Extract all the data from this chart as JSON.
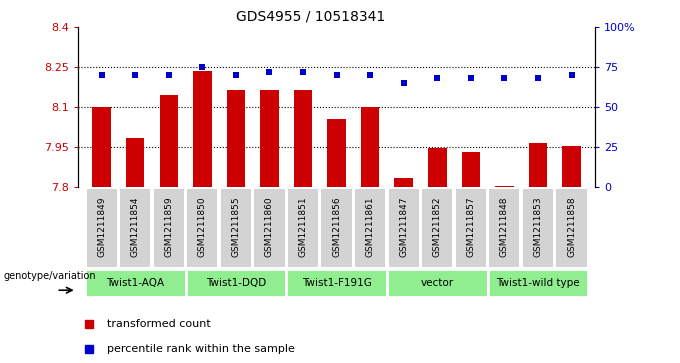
{
  "title": "GDS4955 / 10518341",
  "samples": [
    "GSM1211849",
    "GSM1211854",
    "GSM1211859",
    "GSM1211850",
    "GSM1211855",
    "GSM1211860",
    "GSM1211851",
    "GSM1211856",
    "GSM1211861",
    "GSM1211847",
    "GSM1211852",
    "GSM1211857",
    "GSM1211848",
    "GSM1211853",
    "GSM1211858"
  ],
  "bar_values": [
    8.1,
    7.985,
    8.145,
    8.235,
    8.165,
    8.165,
    8.165,
    8.055,
    8.1,
    7.835,
    7.945,
    7.93,
    7.805,
    7.965,
    7.955
  ],
  "percentile_values": [
    70,
    70,
    70,
    75,
    70,
    72,
    72,
    70,
    70,
    65,
    68,
    68,
    68,
    68,
    70
  ],
  "genotype_groups": [
    {
      "label": "Twist1-AQA",
      "start": 0,
      "end": 3
    },
    {
      "label": "Twist1-DQD",
      "start": 3,
      "end": 6
    },
    {
      "label": "Twist1-F191G",
      "start": 6,
      "end": 9
    },
    {
      "label": "vector",
      "start": 9,
      "end": 12
    },
    {
      "label": "Twist1-wild type",
      "start": 12,
      "end": 15
    }
  ],
  "bar_color": "#cc0000",
  "percentile_color": "#0000cc",
  "bar_bottom": 7.8,
  "ylim_left": [
    7.8,
    8.4
  ],
  "ylim_right": [
    0,
    100
  ],
  "yticks_left": [
    7.8,
    7.95,
    8.1,
    8.25,
    8.4
  ],
  "yticks_right": [
    0,
    25,
    50,
    75,
    100
  ],
  "ytick_labels_left": [
    "7.8",
    "7.95",
    "8.1",
    "8.25",
    "8.4"
  ],
  "ytick_labels_right": [
    "0",
    "25",
    "50",
    "75",
    "100%"
  ],
  "hlines": [
    7.95,
    8.1,
    8.25
  ],
  "legend_items": [
    {
      "label": "transformed count",
      "color": "#cc0000"
    },
    {
      "label": "percentile rank within the sample",
      "color": "#0000cc"
    }
  ],
  "genotype_label": "genotype/variation",
  "sample_bg_color": "#d3d3d3",
  "group_bg_color": "#90ee90",
  "fig_bg_color": "#ffffff"
}
